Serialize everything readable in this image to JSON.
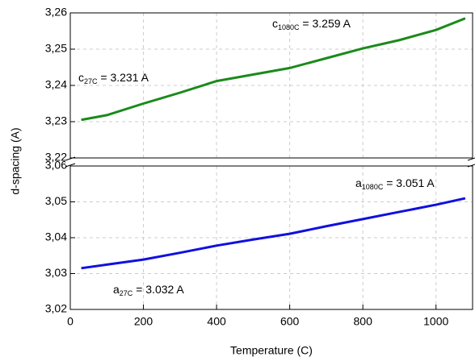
{
  "chart_data": [
    {
      "type": "line",
      "ylabel": "d-spacing (A)",
      "xlim": [
        0,
        1100
      ],
      "xticks": [
        0,
        200,
        400,
        600,
        800,
        1000
      ],
      "ylim": [
        3.22,
        3.26
      ],
      "yticks": [
        {
          "value": 3.22,
          "label": "3,22"
        },
        {
          "value": 3.23,
          "label": "3,23"
        },
        {
          "value": 3.24,
          "label": "3,24"
        },
        {
          "value": 3.25,
          "label": "3,25"
        },
        {
          "value": 3.26,
          "label": "3,26"
        }
      ],
      "grid": true,
      "x": [
        30,
        100,
        200,
        300,
        400,
        500,
        600,
        700,
        800,
        900,
        1000,
        1080
      ],
      "series": [
        {
          "color": "#1a8a1a",
          "values": [
            3.2305,
            3.2318,
            3.235,
            3.238,
            3.2412,
            3.243,
            3.2448,
            3.2475,
            3.2502,
            3.2525,
            3.2553,
            3.2585
          ]
        }
      ],
      "annotations": [
        {
          "text": "c",
          "sub": "1080C",
          "rest": " = 3.259 A"
        },
        {
          "text": "c",
          "sub": "27C",
          "rest": " = 3.231 A"
        }
      ]
    },
    {
      "type": "line",
      "xlabel": "Temperature (C)",
      "xlim": [
        0,
        1100
      ],
      "xticks": [
        0,
        200,
        400,
        600,
        800,
        1000
      ],
      "ylim": [
        3.02,
        3.06
      ],
      "yticks": [
        {
          "value": 3.02,
          "label": "3,02"
        },
        {
          "value": 3.03,
          "label": "3,03"
        },
        {
          "value": 3.04,
          "label": "3,04"
        },
        {
          "value": 3.05,
          "label": "3,05"
        },
        {
          "value": 3.06,
          "label": "3,06"
        }
      ],
      "grid": true,
      "x": [
        30,
        100,
        200,
        300,
        400,
        500,
        600,
        700,
        800,
        900,
        1000,
        1080
      ],
      "series": [
        {
          "color": "#1010e0",
          "values": [
            3.0315,
            3.0325,
            3.0339,
            3.0358,
            3.0378,
            3.0395,
            3.0411,
            3.0432,
            3.0452,
            3.0472,
            3.0492,
            3.051
          ]
        }
      ],
      "annotations": [
        {
          "text": "a",
          "sub": "1080C",
          "rest": " = 3.051 A"
        },
        {
          "text": "a",
          "sub": "27C",
          "rest": " = 3.032 A"
        }
      ]
    }
  ]
}
